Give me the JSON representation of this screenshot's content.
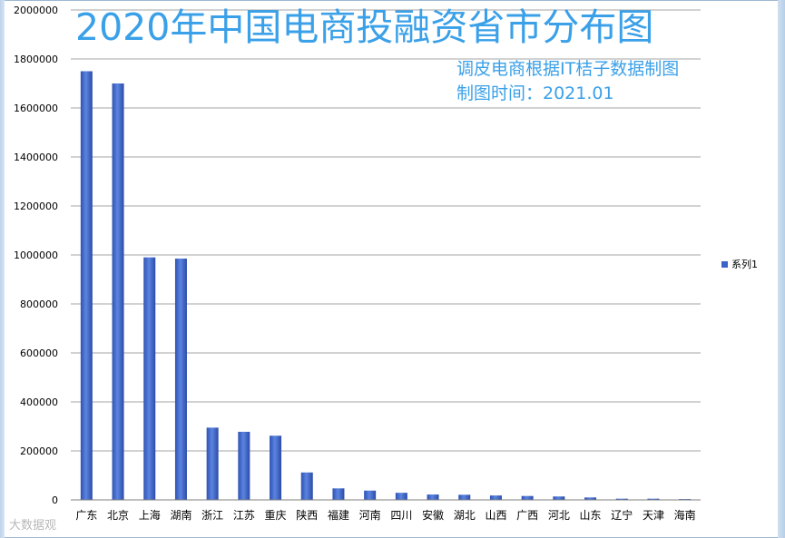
{
  "chart_data": {
    "type": "bar",
    "title": "2020年中国电商投融资省市分布图",
    "subtitle": [
      "调皮电商根据IT桔子数据制图",
      "制图时间：2021.01"
    ],
    "categories": [
      "广东",
      "北京",
      "上海",
      "湖南",
      "浙江",
      "江苏",
      "重庆",
      "陕西",
      "福建",
      "河南",
      "四川",
      "安徽",
      "湖北",
      "山西",
      "广西",
      "河北",
      "山东",
      "辽宁",
      "天津",
      "海南"
    ],
    "series": [
      {
        "name": "系列1",
        "values": [
          1750000,
          1700000,
          990000,
          985000,
          295000,
          278000,
          262000,
          112000,
          47000,
          38000,
          29000,
          22000,
          21000,
          18000,
          16000,
          14000,
          10000,
          5000,
          5000,
          3500
        ]
      }
    ],
    "ylim": [
      0,
      2000000
    ],
    "yticks": [
      "0",
      "200000",
      "400000",
      "600000",
      "800000",
      "1000000",
      "1200000",
      "1400000",
      "1600000",
      "1800000",
      "2000000"
    ],
    "grid": true,
    "legend": "right",
    "colors": {
      "bar": "#3a63c9",
      "title": "#3aa0e8",
      "grid": "#a6a6a6"
    }
  },
  "watermark": "大数据观"
}
